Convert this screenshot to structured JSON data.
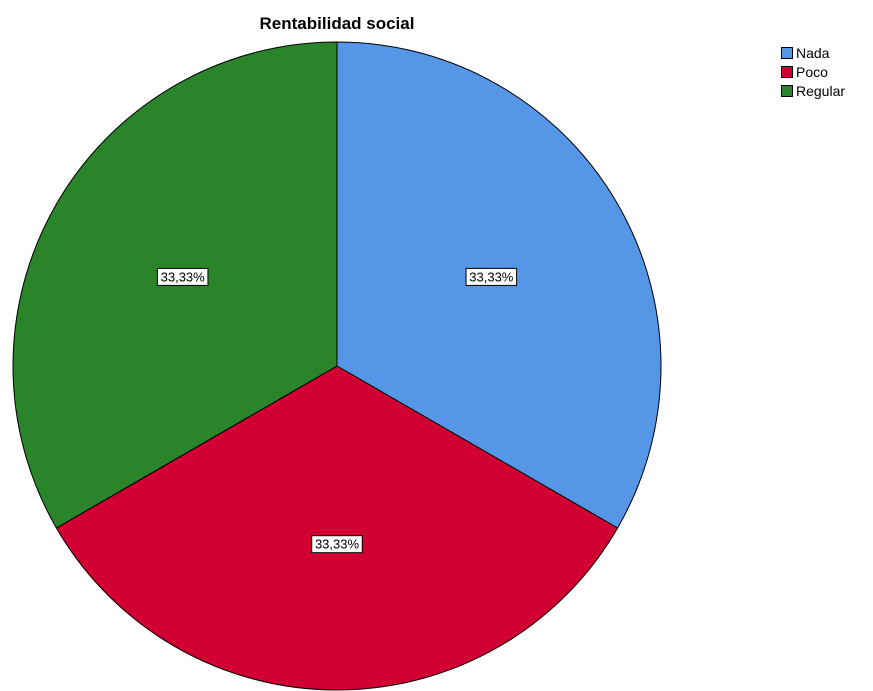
{
  "chart_data": {
    "type": "pie",
    "title": "Rentabilidad social",
    "slices": [
      {
        "label": "Nada",
        "value": 33.33,
        "data_label": "33,33%",
        "color": "#5596e6"
      },
      {
        "label": "Poco",
        "value": 33.33,
        "data_label": "33,33%",
        "color": "#d20032"
      },
      {
        "label": "Regular",
        "value": 33.33,
        "data_label": "33,33%",
        "color": "#2a8429"
      }
    ],
    "legend_position": "top-right",
    "start_angle": "12 o'clock",
    "direction": "clockwise"
  }
}
